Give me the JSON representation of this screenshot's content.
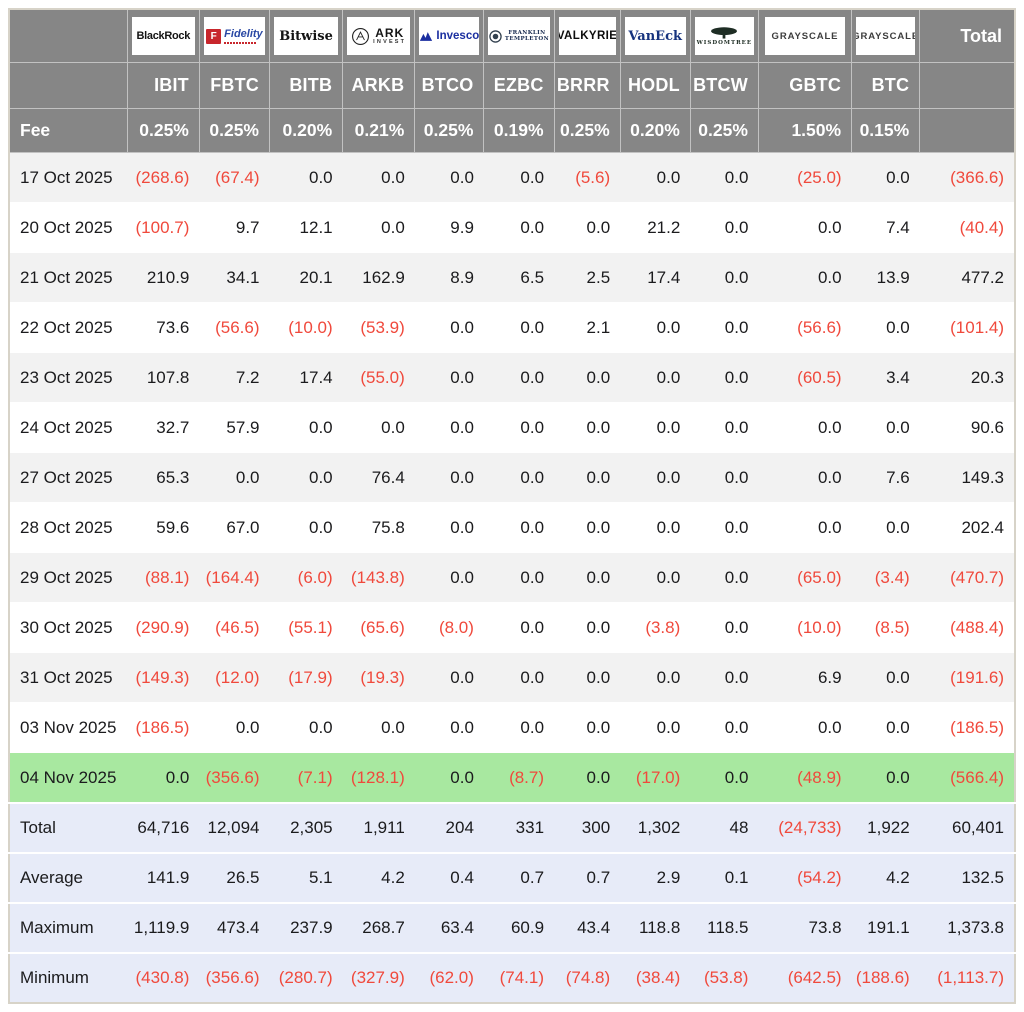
{
  "chart_data": {
    "type": "table",
    "fee_label": "Fee",
    "total_label": "Total",
    "providers": [
      {
        "ticker": "IBIT",
        "fee": "0.25%",
        "brand": "BlackRock",
        "logo": "blackrock"
      },
      {
        "ticker": "FBTC",
        "fee": "0.25%",
        "brand": "Fidelity",
        "logo": "fidelity"
      },
      {
        "ticker": "BITB",
        "fee": "0.20%",
        "brand": "Bitwise",
        "logo": "bitwise"
      },
      {
        "ticker": "ARKB",
        "fee": "0.21%",
        "brand": "ARK",
        "sub": "INVEST",
        "logo": "ark"
      },
      {
        "ticker": "BTCO",
        "fee": "0.25%",
        "brand": "Invesco",
        "logo": "invesco"
      },
      {
        "ticker": "EZBC",
        "fee": "0.19%",
        "brand": "Franklin Templeton",
        "lines": [
          "FRANKLIN",
          "TEMPLETON"
        ],
        "logo": "franklin"
      },
      {
        "ticker": "BRRR",
        "fee": "0.25%",
        "brand": "VALKYRIE",
        "logo": "valkyrie"
      },
      {
        "ticker": "HODL",
        "fee": "0.20%",
        "brand": "VanEck",
        "logo": "vaneck"
      },
      {
        "ticker": "BTCW",
        "fee": "0.25%",
        "brand": "WISDOMTREE",
        "logo": "wisdomtree"
      },
      {
        "ticker": "GBTC",
        "fee": "1.50%",
        "brand": "GRAYSCALE",
        "logo": "grayscale"
      },
      {
        "ticker": "BTC",
        "fee": "0.15%",
        "brand": "GRAYSCALE",
        "logo": "grayscale"
      }
    ],
    "rows": [
      {
        "date": "17 Oct 2025",
        "values": [
          "(268.6)",
          "(67.4)",
          "0.0",
          "0.0",
          "0.0",
          "0.0",
          "(5.6)",
          "0.0",
          "0.0",
          "(25.0)",
          "0.0"
        ],
        "total": "(366.6)",
        "highlight": false
      },
      {
        "date": "20 Oct 2025",
        "values": [
          "(100.7)",
          "9.7",
          "12.1",
          "0.0",
          "9.9",
          "0.0",
          "0.0",
          "21.2",
          "0.0",
          "0.0",
          "7.4"
        ],
        "total": "(40.4)",
        "highlight": false
      },
      {
        "date": "21 Oct 2025",
        "values": [
          "210.9",
          "34.1",
          "20.1",
          "162.9",
          "8.9",
          "6.5",
          "2.5",
          "17.4",
          "0.0",
          "0.0",
          "13.9"
        ],
        "total": "477.2",
        "highlight": false
      },
      {
        "date": "22 Oct 2025",
        "values": [
          "73.6",
          "(56.6)",
          "(10.0)",
          "(53.9)",
          "0.0",
          "0.0",
          "2.1",
          "0.0",
          "0.0",
          "(56.6)",
          "0.0"
        ],
        "total": "(101.4)",
        "highlight": false
      },
      {
        "date": "23 Oct 2025",
        "values": [
          "107.8",
          "7.2",
          "17.4",
          "(55.0)",
          "0.0",
          "0.0",
          "0.0",
          "0.0",
          "0.0",
          "(60.5)",
          "3.4"
        ],
        "total": "20.3",
        "highlight": false
      },
      {
        "date": "24 Oct 2025",
        "values": [
          "32.7",
          "57.9",
          "0.0",
          "0.0",
          "0.0",
          "0.0",
          "0.0",
          "0.0",
          "0.0",
          "0.0",
          "0.0"
        ],
        "total": "90.6",
        "highlight": false
      },
      {
        "date": "27 Oct 2025",
        "values": [
          "65.3",
          "0.0",
          "0.0",
          "76.4",
          "0.0",
          "0.0",
          "0.0",
          "0.0",
          "0.0",
          "0.0",
          "7.6"
        ],
        "total": "149.3",
        "highlight": false
      },
      {
        "date": "28 Oct 2025",
        "values": [
          "59.6",
          "67.0",
          "0.0",
          "75.8",
          "0.0",
          "0.0",
          "0.0",
          "0.0",
          "0.0",
          "0.0",
          "0.0"
        ],
        "total": "202.4",
        "highlight": false
      },
      {
        "date": "29 Oct 2025",
        "values": [
          "(88.1)",
          "(164.4)",
          "(6.0)",
          "(143.8)",
          "0.0",
          "0.0",
          "0.0",
          "0.0",
          "0.0",
          "(65.0)",
          "(3.4)"
        ],
        "total": "(470.7)",
        "highlight": false
      },
      {
        "date": "30 Oct 2025",
        "values": [
          "(290.9)",
          "(46.5)",
          "(55.1)",
          "(65.6)",
          "(8.0)",
          "0.0",
          "0.0",
          "(3.8)",
          "0.0",
          "(10.0)",
          "(8.5)"
        ],
        "total": "(488.4)",
        "highlight": false
      },
      {
        "date": "31 Oct 2025",
        "values": [
          "(149.3)",
          "(12.0)",
          "(17.9)",
          "(19.3)",
          "0.0",
          "0.0",
          "0.0",
          "0.0",
          "0.0",
          "6.9",
          "0.0"
        ],
        "total": "(191.6)",
        "highlight": false
      },
      {
        "date": "03 Nov 2025",
        "values": [
          "(186.5)",
          "0.0",
          "0.0",
          "0.0",
          "0.0",
          "0.0",
          "0.0",
          "0.0",
          "0.0",
          "0.0",
          "0.0"
        ],
        "total": "(186.5)",
        "highlight": false
      },
      {
        "date": "04 Nov 2025",
        "values": [
          "0.0",
          "(356.6)",
          "(7.1)",
          "(128.1)",
          "0.0",
          "(8.7)",
          "0.0",
          "(17.0)",
          "0.0",
          "(48.9)",
          "0.0"
        ],
        "total": "(566.4)",
        "highlight": true
      }
    ],
    "summary_rows": [
      {
        "label": "Total",
        "values": [
          "64,716",
          "12,094",
          "2,305",
          "1,911",
          "204",
          "331",
          "300",
          "1,302",
          "48",
          "(24,733)",
          "1,922"
        ],
        "total": "60,401"
      },
      {
        "label": "Average",
        "values": [
          "141.9",
          "26.5",
          "5.1",
          "4.2",
          "0.4",
          "0.7",
          "0.7",
          "2.9",
          "0.1",
          "(54.2)",
          "4.2"
        ],
        "total": "132.5"
      },
      {
        "label": "Maximum",
        "values": [
          "1,119.9",
          "473.4",
          "237.9",
          "268.7",
          "63.4",
          "60.9",
          "43.4",
          "118.8",
          "118.5",
          "73.8",
          "191.1"
        ],
        "total": "1,373.8"
      },
      {
        "label": "Minimum",
        "values": [
          "(430.8)",
          "(356.6)",
          "(280.7)",
          "(327.9)",
          "(62.0)",
          "(74.1)",
          "(74.8)",
          "(38.4)",
          "(53.8)",
          "(642.5)",
          "(188.6)"
        ],
        "total": "(1,113.7)"
      }
    ],
    "colors": {
      "header_bg": "#868686",
      "negative_text": "#f0493c",
      "positive_text": "#1b1b1d",
      "highlight_row_bg": "#a8e8a0",
      "summary_row_bg": "#e7ebf8",
      "stripe_row_bg": "#f2f2f2"
    }
  }
}
